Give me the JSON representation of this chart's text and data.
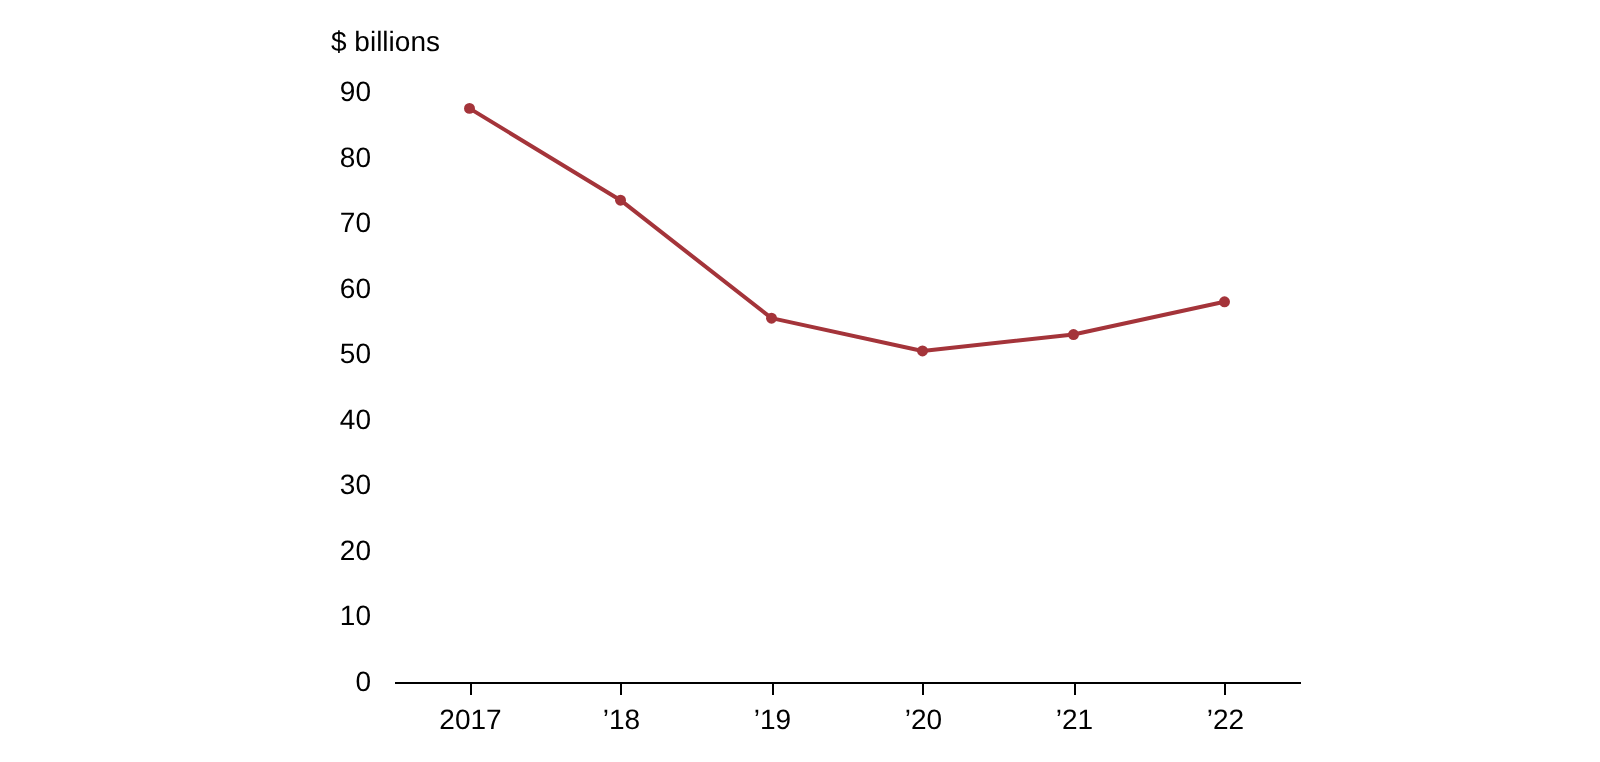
{
  "chart_data": {
    "type": "line",
    "ylabel": "$ billions",
    "categories": [
      "2017",
      "’18",
      "’19",
      "’20",
      "’21",
      "’22"
    ],
    "series": [
      {
        "color": "#a4343a",
        "values": [
          87.5,
          73.5,
          55.5,
          50.5,
          53,
          58
        ]
      }
    ],
    "ylim": [
      0,
      90
    ],
    "yticks": [
      0,
      10,
      20,
      30,
      40,
      50,
      60,
      70,
      80,
      90
    ],
    "grid": false,
    "legend": false,
    "marker": "circle",
    "line_style": "solid"
  }
}
